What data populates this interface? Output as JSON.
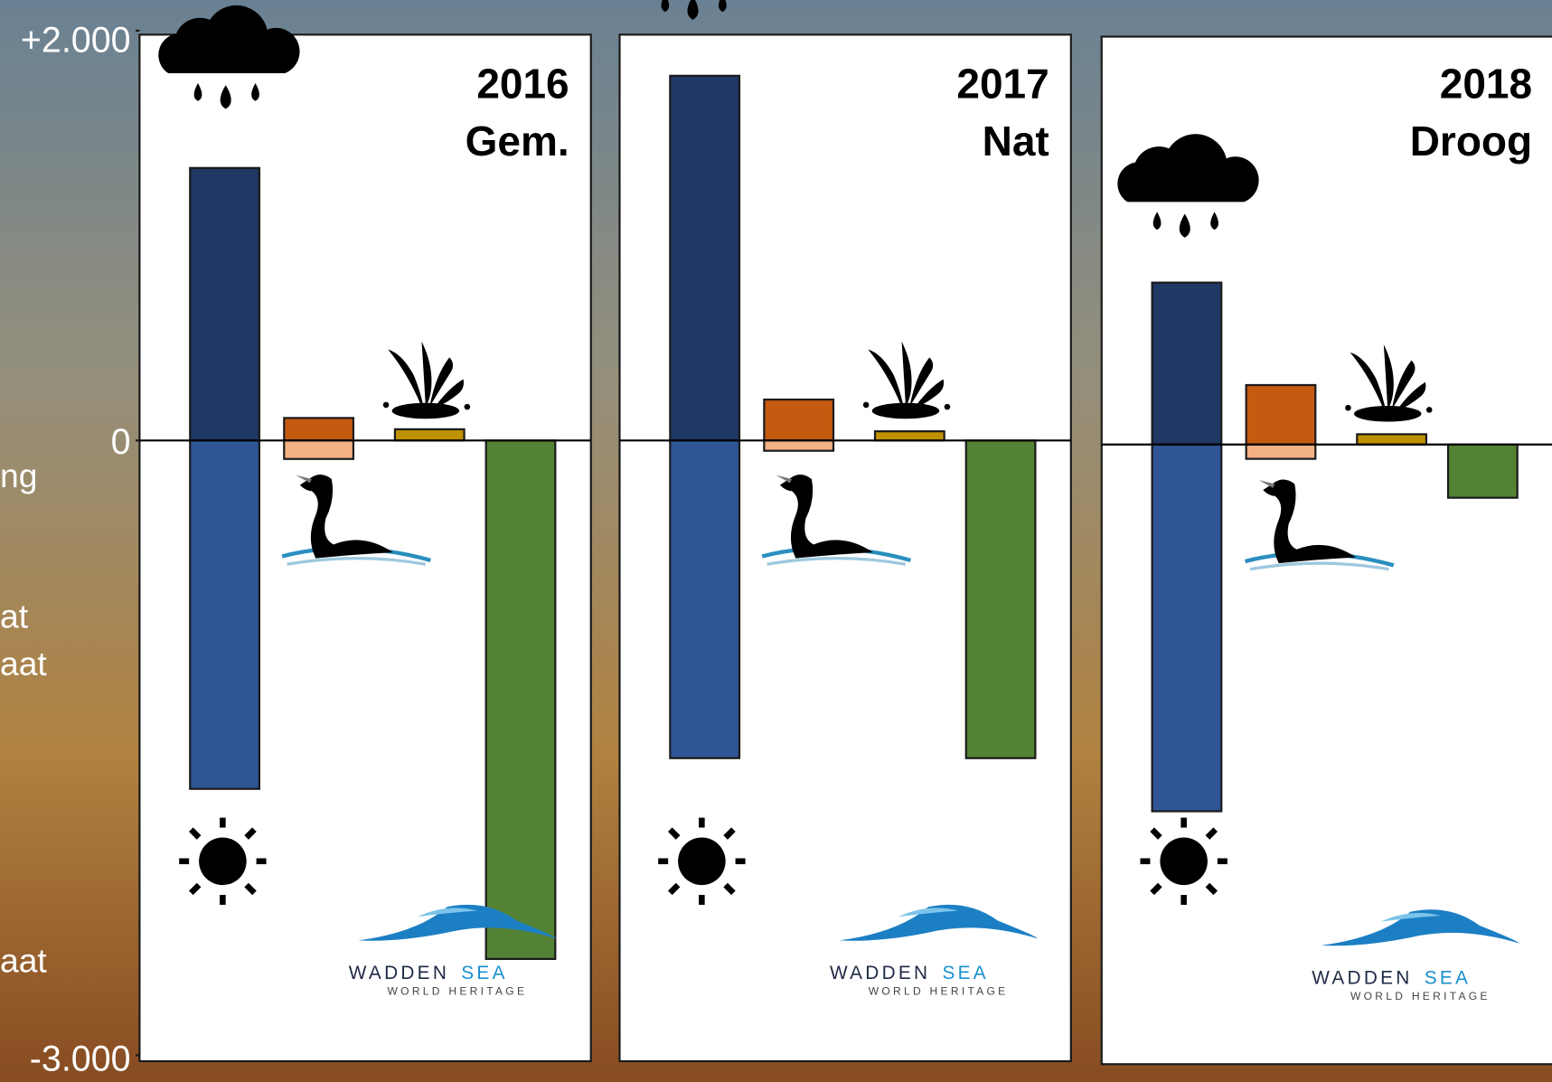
{
  "annotations": [
    "ng",
    "at",
    "aat",
    "aat"
  ],
  "logo": {
    "name": "WADDEN",
    "name2": "SEA",
    "tagline": "WORLD HERITAGE"
  },
  "chart_data": [
    {
      "type": "bar",
      "title": "2016",
      "subtitle": "Gem.",
      "categories": [
        null,
        null,
        null,
        null
      ],
      "ylim": [
        -3000,
        2000
      ],
      "yticks": [
        {
          "value": 2000,
          "label": "+2.000"
        },
        0,
        {
          "value": -3000,
          "label": "-3.000"
        }
      ],
      "series": [
        {
          "color": "#203864",
          "values": [
            1330,
            null,
            null,
            null
          ]
        },
        {
          "color": "#2f5597",
          "values": [
            -1700,
            null,
            null,
            null
          ]
        },
        {
          "color": "#c55a11",
          "values": [
            null,
            110,
            null,
            null
          ]
        },
        {
          "color": "#f4b183",
          "values": [
            null,
            -90,
            null,
            null
          ]
        },
        {
          "color": "#bf9000",
          "values": [
            null,
            null,
            55,
            null
          ]
        },
        {
          "color": "#548235",
          "values": [
            null,
            null,
            null,
            -2530
          ]
        }
      ]
    },
    {
      "type": "bar",
      "title": "2017",
      "subtitle": "Nat",
      "categories": [
        null,
        null,
        null,
        null
      ],
      "ylim": [
        -3000,
        2000
      ],
      "series": [
        {
          "color": "#203864",
          "values": [
            1780,
            null,
            null,
            null
          ]
        },
        {
          "color": "#2f5597",
          "values": [
            -1550,
            null,
            null,
            null
          ]
        },
        {
          "color": "#c55a11",
          "values": [
            null,
            200,
            null,
            null
          ]
        },
        {
          "color": "#f4b183",
          "values": [
            null,
            -50,
            null,
            null
          ]
        },
        {
          "color": "#bf9000",
          "values": [
            null,
            null,
            45,
            null
          ]
        },
        {
          "color": "#548235",
          "values": [
            null,
            null,
            null,
            -1550
          ]
        }
      ]
    },
    {
      "type": "bar",
      "title": "2018",
      "subtitle": "Droog",
      "categories": [
        null,
        null,
        null,
        null
      ],
      "ylim": [
        -3000,
        2000
      ],
      "series": [
        {
          "color": "#203864",
          "values": [
            790,
            null,
            null,
            null
          ]
        },
        {
          "color": "#2f5597",
          "values": [
            -1790,
            null,
            null,
            null
          ]
        },
        {
          "color": "#c55a11",
          "values": [
            null,
            290,
            null,
            null
          ]
        },
        {
          "color": "#f4b183",
          "values": [
            null,
            -70,
            null,
            null
          ]
        },
        {
          "color": "#bf9000",
          "values": [
            null,
            null,
            50,
            null
          ]
        },
        {
          "color": "#548235",
          "values": [
            null,
            null,
            null,
            -260
          ]
        }
      ]
    }
  ]
}
